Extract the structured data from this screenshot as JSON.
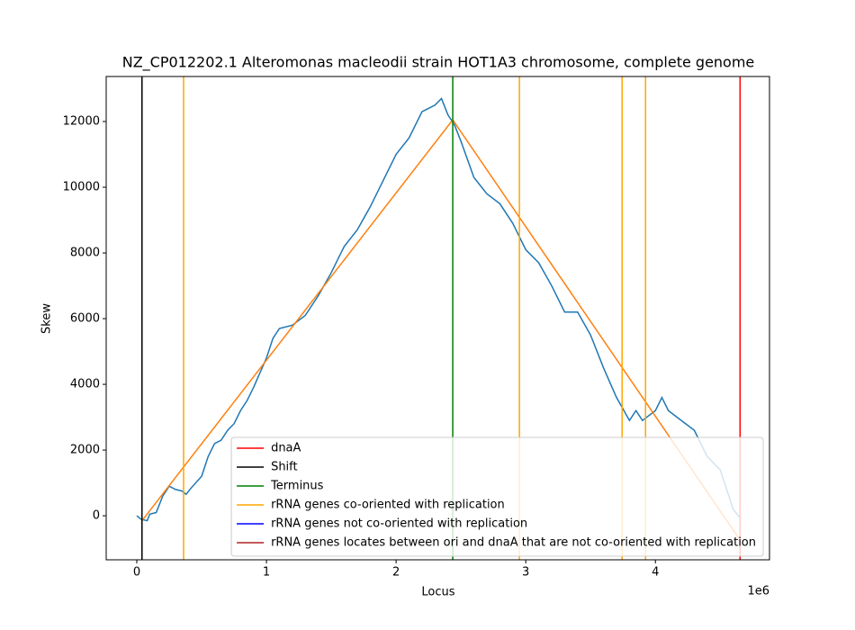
{
  "chart_data": {
    "type": "line",
    "title": "NZ_CP012202.1 Alteromonas macleodii strain HOT1A3 chromosome, complete genome",
    "xlabel": "Locus",
    "ylabel": "Skew",
    "x_offset_label": "1e6",
    "xlim": [
      -0.236,
      4.88
    ],
    "ylim": [
      -1340,
      13370
    ],
    "xticks": [
      0,
      1,
      2,
      3,
      4
    ],
    "yticks": [
      0,
      2000,
      4000,
      6000,
      8000,
      10000,
      12000
    ],
    "legend_loc": "lower right",
    "series": [
      {
        "color": "#1f77b4",
        "x": [
          0,
          0.03,
          0.08,
          0.1,
          0.15,
          0.2,
          0.25,
          0.3,
          0.35,
          0.38,
          0.42,
          0.5,
          0.55,
          0.6,
          0.65,
          0.7,
          0.75,
          0.8,
          0.85,
          0.9,
          1.0,
          1.05,
          1.1,
          1.2,
          1.3,
          1.4,
          1.5,
          1.6,
          1.7,
          1.8,
          1.9,
          2.0,
          2.1,
          2.2,
          2.25,
          2.3,
          2.35,
          2.4,
          2.45,
          2.5,
          2.6,
          2.7,
          2.8,
          2.9,
          3.0,
          3.1,
          3.2,
          3.3,
          3.4,
          3.5,
          3.6,
          3.7,
          3.8,
          3.85,
          3.9,
          4.0,
          4.05,
          4.1,
          4.2,
          4.3,
          4.4,
          4.5,
          4.6,
          4.65
        ],
        "values": [
          0,
          -100,
          -150,
          50,
          100,
          600,
          900,
          800,
          750,
          650,
          850,
          1200,
          1800,
          2200,
          2300,
          2600,
          2800,
          3200,
          3500,
          3900,
          4800,
          5400,
          5700,
          5800,
          6100,
          6700,
          7400,
          8200,
          8700,
          9400,
          10200,
          11000,
          11500,
          12300,
          12400,
          12500,
          12700,
          12200,
          11900,
          11400,
          10300,
          9800,
          9500,
          8900,
          8100,
          7700,
          7000,
          6200,
          6200,
          5500,
          4500,
          3600,
          2900,
          3200,
          2900,
          3200,
          3600,
          3200,
          2900,
          2600,
          1800,
          1400,
          200,
          -50
        ]
      },
      {
        "color": "#ff7f0e",
        "x": [
          0.04,
          2.437,
          4.653
        ],
        "values": [
          -150,
          12050,
          -740
        ]
      }
    ],
    "vlines": [
      {
        "name": "dnaA",
        "color": "#ff0000",
        "x": [
          4.653
        ]
      },
      {
        "name": "Shift",
        "color": "#000000",
        "x": [
          0.04
        ]
      },
      {
        "name": "Terminus",
        "color": "#008000",
        "x": [
          2.437
        ]
      },
      {
        "name": "rRNA genes co-oriented with replication",
        "color": "#ffa500",
        "x": [
          0.361,
          2.951,
          3.743,
          3.924
        ]
      },
      {
        "name": "rRNA genes not co-oriented with replication",
        "color": "#0000ff",
        "x": []
      },
      {
        "name": "rRNA genes locates between ori and dnaA that are not co-oriented with replication",
        "color": "#b22222",
        "x": []
      }
    ]
  }
}
